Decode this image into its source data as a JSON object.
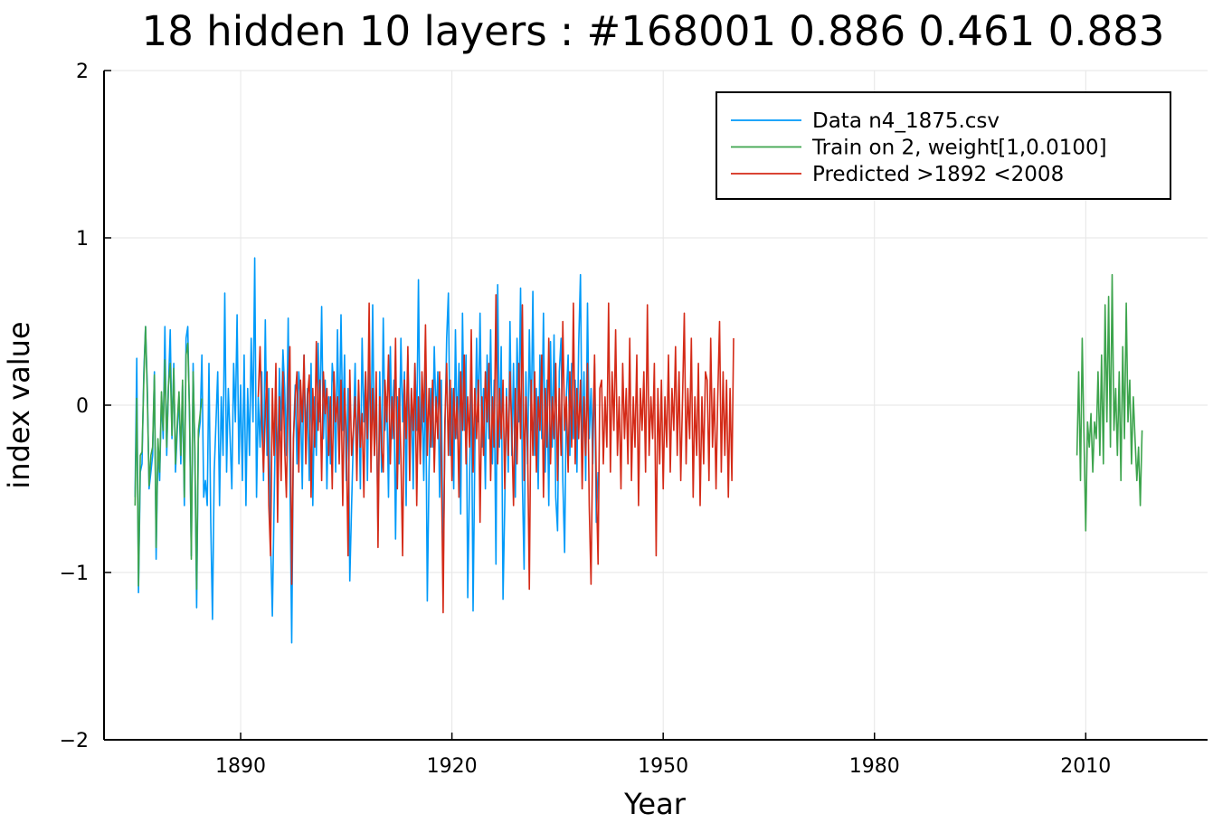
{
  "chart_data": {
    "type": "line",
    "title": "18 hidden 10 layers : #168001 0.886 0.461 0.883",
    "xlabel": "Year",
    "ylabel": "index value",
    "xlim": [
      1870.6,
      2027.3
    ],
    "ylim": [
      -2,
      2
    ],
    "xticks": [
      1890,
      1920,
      1950,
      1980,
      2010
    ],
    "xtick_labels": [
      "1890",
      "1920",
      "1950",
      "1980",
      "2010"
    ],
    "yticks": [
      2,
      1,
      0,
      -1,
      -2
    ],
    "ytick_labels": [
      "2",
      "1",
      "0",
      "−1",
      "−2"
    ],
    "grid": true,
    "legend_position": "top-right",
    "series": [
      {
        "name": "Data n4_1875.csv",
        "color": "#009AF9",
        "x_start": 1875.0,
        "x_step": 0.25,
        "values": [
          -0.55,
          0.28,
          -1.12,
          -0.4,
          -0.35,
          0.2,
          0.47,
          0.1,
          -0.5,
          -0.4,
          -0.3,
          0.2,
          -0.92,
          -0.25,
          -0.45,
          0.05,
          -0.2,
          0.47,
          -0.3,
          0.1,
          0.45,
          -0.2,
          0.25,
          -0.4,
          -0.15,
          0.05,
          -0.35,
          0.12,
          -0.6,
          0.4,
          0.47,
          -0.1,
          -0.9,
          0.25,
          -0.3,
          -1.21,
          -0.2,
          -0.1,
          0.3,
          -0.55,
          -0.45,
          -0.6,
          0.25,
          -0.7,
          -1.28,
          -0.4,
          -0.1,
          0.2,
          -0.6,
          0.05,
          -0.3,
          0.67,
          -0.4,
          0.1,
          -0.2,
          -0.5,
          0.25,
          -0.1,
          0.54,
          -0.35,
          0.12,
          -0.45,
          0.3,
          -0.6,
          0.1,
          -0.3,
          0.4,
          -0.1,
          0.88,
          -0.55,
          0.05,
          -0.25,
          0.2,
          -0.45,
          0.51,
          -0.3,
          0.1,
          -0.8,
          -1.26,
          -0.6,
          0.05,
          -0.4,
          0.22,
          -0.15,
          0.33,
          0.1,
          -0.3,
          0.52,
          -0.42,
          -1.42,
          -0.2,
          0.12,
          -0.35,
          0.2,
          0.05,
          -0.5,
          0.3,
          -0.2,
          0.1,
          -0.45,
          0.25,
          -0.6,
          0.05,
          -0.3,
          0.37,
          -0.1,
          0.59,
          -0.2,
          0.15,
          -0.5,
          0.05,
          -0.35,
          0.25,
          0.1,
          -0.4,
          0.45,
          -0.2,
          0.54,
          -0.15,
          0.3,
          -0.45,
          0.1,
          -1.05,
          -0.6,
          -0.2,
          0.25,
          -0.35,
          0.12,
          -0.5,
          0.4,
          -0.1,
          0.2,
          -0.45,
          0.3,
          -0.25,
          0.6,
          -0.3,
          0.1,
          -0.75,
          0.2,
          -0.4,
          0.52,
          -0.15,
          0.05,
          -0.55,
          0.35,
          -0.2,
          0.15,
          -0.8,
          0.05,
          -0.35,
          0.4,
          -0.1,
          0.2,
          -0.6,
          0.3,
          -0.25,
          0.1,
          -0.5,
          0.25,
          -0.15,
          0.75,
          -0.3,
          0.05,
          -0.45,
          0.3,
          -1.17,
          -0.4,
          0.1,
          -0.25,
          0.35,
          -0.1,
          0.2,
          -0.55,
          0.15,
          -1.03,
          -0.2,
          0.4,
          0.67,
          -0.3,
          0.1,
          -0.5,
          0.45,
          -0.2,
          0.25,
          -0.65,
          0.55,
          -0.15,
          0.3,
          -1.15,
          -0.45,
          0.2,
          -1.23,
          -0.3,
          0.4,
          -0.1,
          0.55,
          -0.25,
          0.1,
          -0.5,
          0.3,
          -0.2,
          0.45,
          -0.35,
          0.15,
          -0.95,
          0.72,
          -0.25,
          0.35,
          -1.16,
          -0.6,
          0.1,
          -0.4,
          0.5,
          -0.3,
          0.25,
          -0.55,
          0.4,
          -0.1,
          0.7,
          -0.45,
          -0.98,
          0.2,
          -0.35,
          0.45,
          -0.15,
          0.68,
          -0.3,
          0.1,
          -0.5,
          0.3,
          -0.2,
          0.55,
          -0.4,
          0.15,
          -0.6,
          0.38,
          -0.25,
          0.42,
          -0.55,
          -0.75,
          0.2,
          0.4,
          -0.45,
          -0.88,
          0.05,
          0.3,
          -0.3,
          0.25,
          -0.2,
          0.15,
          -0.4,
          0.35,
          0.78,
          -0.3,
          0.2,
          -0.45,
          0.61,
          -0.2,
          0.1,
          -0.35,
          0.25,
          -0.7,
          -0.4
        ]
      },
      {
        "name": "Train on 2, weight[1,0.0100]",
        "color": "#3DA44D",
        "x_start": 1875.0,
        "x_step": 0.25,
        "segments": [
          {
            "start_index": 0,
            "values": [
              -0.6,
              0.04,
              -1.08,
              -0.3,
              -0.28,
              0.15,
              0.47,
              0.05,
              -0.48,
              -0.3,
              -0.25,
              0.18,
              -0.85,
              -0.2,
              -0.4,
              0.08,
              -0.15,
              0.27,
              -0.25,
              0.12,
              0.25,
              -0.18,
              0.22,
              -0.35,
              -0.1,
              0.08,
              -0.3,
              0.15,
              -0.55,
              0.3,
              0.37,
              -0.05,
              -0.92,
              0.2,
              -0.25,
              -1.1,
              -0.15,
              -0.05,
              0.04
            ]
          },
          {
            "start_index": 535,
            "values": [
              -0.3,
              0.2,
              -0.45,
              0.4,
              -0.2,
              -0.75,
              -0.1,
              -0.25,
              -0.05,
              -0.4,
              -0.1,
              -0.2,
              0.2,
              -0.3,
              0.3,
              -0.35,
              0.6,
              -0.1,
              0.65,
              -0.25,
              0.78,
              -0.15,
              0.1,
              -0.3,
              0.2,
              -0.45,
              0.35,
              -0.2,
              0.61,
              -0.1,
              0.15,
              -0.35,
              0.05,
              -0.2,
              -0.45,
              -0.25,
              -0.6,
              -0.15
            ]
          }
        ]
      },
      {
        "name": "Predicted >1892 <2008",
        "color": "#D42A17",
        "x_start": 1892.5,
        "x_step": 0.25,
        "values": [
          0.05,
          0.35,
          -0.1,
          -0.4,
          -0.05,
          0.2,
          -0.6,
          -0.9,
          0.1,
          -0.3,
          0.25,
          -0.7,
          0.05,
          -0.45,
          0.2,
          -0.25,
          -0.55,
          0.1,
          0.35,
          -1.07,
          -0.2,
          0.05,
          0.2,
          -0.4,
          0.15,
          -0.1,
          0.3,
          -0.35,
          0.05,
          0.18,
          -0.55,
          0.1,
          -0.25,
          0.38,
          -0.15,
          0.15,
          -0.45,
          0.2,
          -0.05,
          0.1,
          -0.3,
          0.05,
          -0.5,
          0.2,
          -0.1,
          0.05,
          -0.35,
          0.15,
          -0.6,
          0.1,
          -0.2,
          -0.9,
          0.21,
          -0.3,
          -0.15,
          0.05,
          -0.45,
          0.15,
          -0.25,
          -0.05,
          -0.55,
          0.2,
          -0.2,
          0.61,
          -0.4,
          0.1,
          -0.3,
          0.2,
          -0.85,
          0.05,
          -0.25,
          -0.4,
          0.15,
          -0.1,
          0.3,
          -0.35,
          0.05,
          -0.2,
          0.4,
          -0.5,
          0.1,
          -0.3,
          -0.9,
          0.15,
          -0.2,
          0.35,
          -0.45,
          0.1,
          -0.15,
          0.25,
          -0.6,
          0.05,
          -0.35,
          0.2,
          -0.1,
          0.48,
          -0.3,
          0.1,
          -0.25,
          0.15,
          -0.4,
          0.05,
          -0.2,
          0.2,
          -0.35,
          -1.24,
          -0.1,
          0.25,
          -0.3,
          0.15,
          -0.45,
          0.1,
          -0.2,
          0.05,
          -0.55,
          0.2,
          -0.15,
          0.3,
          -0.35,
          0.05,
          -0.25,
          0.45,
          -0.4,
          0.1,
          -0.2,
          0.15,
          -0.7,
          0.05,
          -0.3,
          0.2,
          -0.1,
          0.25,
          -0.45,
          0.05,
          -0.25,
          0.66,
          -0.35,
          0.1,
          -0.2,
          0.15,
          -0.5,
          0.05,
          -0.3,
          0.2,
          -0.15,
          -0.6,
          0.1,
          -0.35,
          0.25,
          -0.2,
          0.6,
          -0.45,
          0.05,
          -0.25,
          -1.1,
          0.15,
          -0.3,
          0.2,
          -0.4,
          0.05,
          -0.15,
          0.3,
          -0.55,
          0.1,
          -0.25,
          0.4,
          -0.35,
          0.05,
          -0.2,
          0.25,
          -0.45,
          0.1,
          -0.3,
          0.5,
          -0.15,
          0.05,
          -0.4,
          0.2,
          -0.25,
          0.61,
          -0.35,
          0.1,
          -0.2,
          0.15,
          -0.5,
          0.05,
          -0.3,
          0.25,
          -0.6,
          -1.07,
          -0.2,
          0.3,
          -0.45,
          -0.95,
          0.1,
          0.15,
          -0.35,
          0.05,
          -0.25,
          0.61,
          -0.4,
          0.2,
          -0.15,
          0.45,
          -0.3,
          0.05,
          -0.5,
          0.25,
          -0.2,
          0.1,
          -0.35,
          0.4,
          -0.45,
          0.05,
          -0.25,
          0.3,
          -0.6,
          0.1,
          -0.15,
          0.2,
          -0.4,
          0.6,
          -0.3,
          0.05,
          -0.2,
          0.25,
          -0.9,
          0.1,
          -0.35,
          0.15,
          -0.5,
          0.05,
          -0.25,
          0.3,
          -0.4,
          0.1,
          -0.15,
          0.35,
          -0.3,
          0.2,
          -0.45,
          0.05,
          0.55,
          -0.35,
          0.1,
          -0.2,
          0.4,
          -0.55,
          0.05,
          -0.3,
          0.25,
          -0.6,
          0.05,
          -0.35,
          0.2,
          0.15,
          -0.45,
          0.4,
          -0.25,
          0.1,
          -0.5,
          0.05,
          0.5,
          -0.4,
          0.2,
          -0.3,
          0.15,
          -0.55,
          0.1,
          -0.45,
          0.4
        ]
      }
    ]
  }
}
